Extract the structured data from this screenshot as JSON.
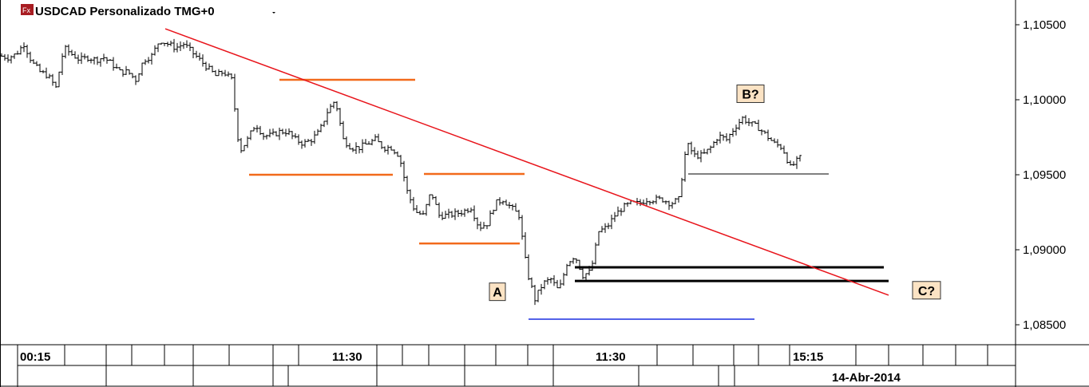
{
  "header": {
    "title": "USDCAD Personalizado TMG+0",
    "dropdown_icon": "caret-down-icon",
    "logo_text": "Fx"
  },
  "chart_data": {
    "type": "bar",
    "subtype": "ohlc",
    "symbol": "USDCAD",
    "ylim": [
      1.0835,
      1.1065
    ],
    "y_ticks": [
      "1,10500",
      "1,10000",
      "1,09500",
      "1,09000",
      "1,08500"
    ],
    "y_tick_values": [
      1.105,
      1.1,
      1.095,
      1.09,
      1.085
    ],
    "x_tick_labels": [
      "00:15",
      "11:30",
      "11:30",
      "15:15"
    ],
    "date_label": "14-Abr-2014",
    "closes": [
      1.10293,
      1.10282,
      1.10303,
      1.10372,
      1.1025,
      1.10186,
      1.1016,
      1.1008,
      1.10346,
      1.10303,
      1.10266,
      1.10282,
      1.10266,
      1.10282,
      1.10239,
      1.10186,
      1.10186,
      1.10133,
      1.10266,
      1.10293,
      1.10399,
      1.10372,
      1.10346,
      1.10372,
      1.10319,
      1.10266,
      1.10213,
      1.1016,
      1.10186,
      1.10133,
      1.09654,
      1.09734,
      1.0984,
      1.09761,
      1.09761,
      1.09787,
      1.09787,
      1.09734,
      1.09707,
      1.09734,
      1.09787,
      1.0992,
      1.1,
      1.09734,
      1.09681,
      1.09681,
      1.09707,
      1.09734,
      1.09681,
      1.09681,
      1.09628,
      1.09388,
      1.09255,
      1.09229,
      1.09388,
      1.09229,
      1.09229,
      1.09239,
      1.09255,
      1.09282,
      1.09149,
      1.09175,
      1.09308,
      1.09335,
      1.09282,
      1.09229,
      1.08856,
      1.0867,
      1.08776,
      1.08803,
      1.08723,
      1.08909,
      1.08963,
      1.0883,
      1.08856,
      1.09122,
      1.09149,
      1.09229,
      1.09282,
      1.09308,
      1.09308,
      1.09335,
      1.09335,
      1.09335,
      1.09308,
      1.09335,
      1.09707,
      1.09628,
      1.09628,
      1.09681,
      1.09761,
      1.09734,
      1.09814,
      1.09878,
      1.0984,
      1.09814,
      1.09761,
      1.09707,
      1.09681,
      1.09548,
      1.09601
    ],
    "annotations": {
      "trendline": {
        "color": "#e8141b",
        "from": 1.10473,
        "to": 1.08697
      },
      "orange_levels": {
        "color": "#f26a1b",
        "values": [
          1.10133,
          1.095,
          1.09505,
          1.09042
        ]
      },
      "blue_level": {
        "color": "#1a2fe0",
        "value": 1.08537
      },
      "black_levels": {
        "color": "#000000",
        "values": [
          1.09505,
          1.08883,
          1.08792
        ]
      },
      "labels": [
        {
          "text": "A",
          "price": 1.0872
        },
        {
          "text": "B?",
          "price": 1.1004
        },
        {
          "text": "C?",
          "price": 1.0873
        }
      ],
      "label_fill": "#fbe3c4"
    },
    "grid": false
  }
}
